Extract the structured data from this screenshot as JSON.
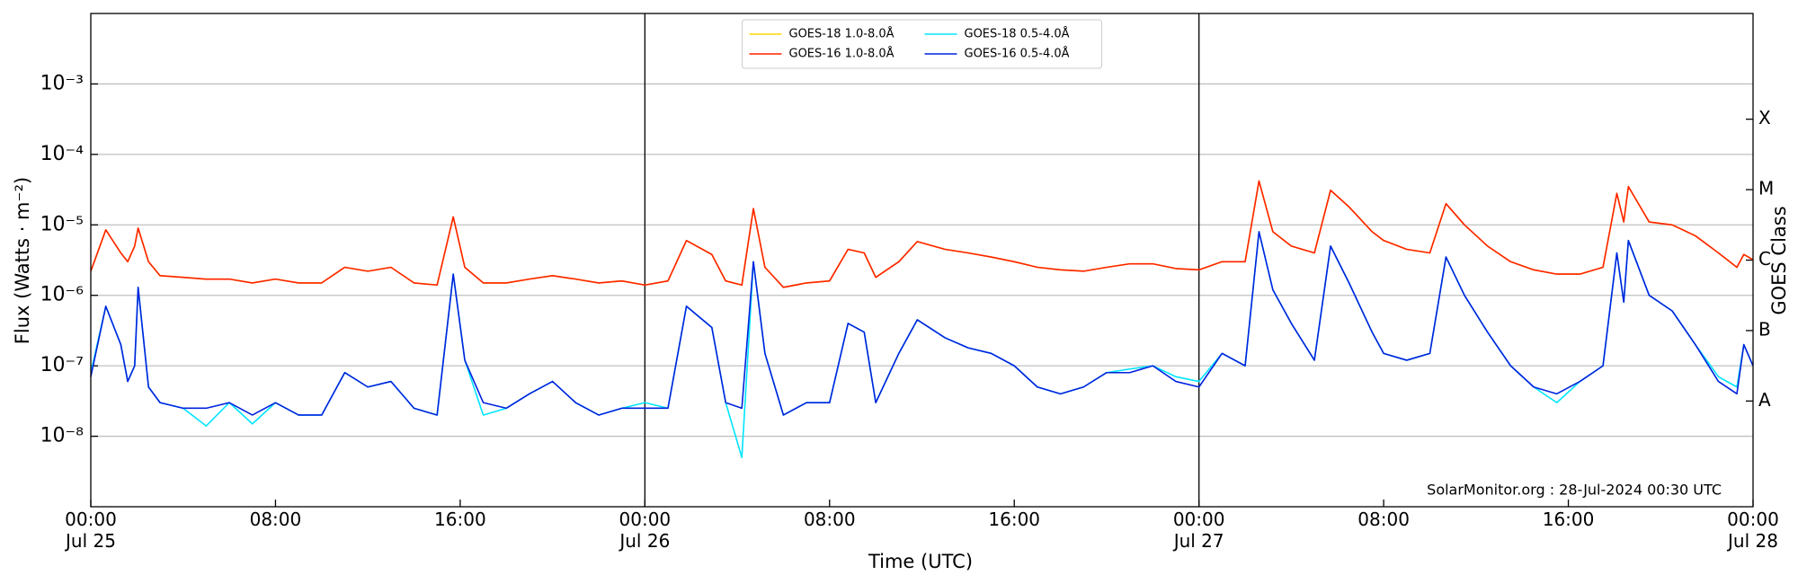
{
  "chart_data": {
    "type": "line",
    "xlabel": "Time (UTC)",
    "ylabel": "Flux (Watts · m⁻²)",
    "y2label": "GOES Class",
    "annotation": "SolarMonitor.org : 28-Jul-2024 00:30 UTC",
    "ylog": true,
    "grid": "y",
    "legend": "upper center",
    "ylim": [
      1e-09,
      0.01
    ],
    "yticks": [
      {
        "value": 1e-08,
        "label": "10⁻⁸"
      },
      {
        "value": 1e-07,
        "label": "10⁻⁷"
      },
      {
        "value": 1e-06,
        "label": "10⁻⁶"
      },
      {
        "value": 1e-05,
        "label": "10⁻⁵"
      },
      {
        "value": 0.0001,
        "label": "10⁻⁴"
      },
      {
        "value": 0.001,
        "label": "10⁻³"
      }
    ],
    "y2lim": [
      1e-09,
      0.01
    ],
    "y2ticks": [
      {
        "value": 3.1623e-08,
        "label": "A"
      },
      {
        "value": 3.1623e-07,
        "label": "B"
      },
      {
        "value": 3.1623e-06,
        "label": "C"
      },
      {
        "value": 3.1623e-05,
        "label": "M"
      },
      {
        "value": 0.00031623,
        "label": "X"
      }
    ],
    "xlim": [
      0,
      72
    ],
    "xticks": [
      {
        "value": 0,
        "label": "00:00\nJul 25"
      },
      {
        "value": 8,
        "label": "08:00"
      },
      {
        "value": 16,
        "label": "16:00"
      },
      {
        "value": 24,
        "label": "00:00\nJul 26"
      },
      {
        "value": 32,
        "label": "08:00"
      },
      {
        "value": 40,
        "label": "16:00"
      },
      {
        "value": 48,
        "label": "00:00\nJul 27"
      },
      {
        "value": 56,
        "label": "08:00"
      },
      {
        "value": 64,
        "label": "16:00"
      },
      {
        "value": 72,
        "label": "00:00\nJul 28"
      }
    ],
    "vlines": [
      24,
      48
    ],
    "x": [
      0,
      0.65,
      1.3,
      1.6,
      1.9,
      2.05,
      2.5,
      3,
      4,
      5,
      6,
      7,
      8,
      9,
      10,
      11,
      12,
      13,
      14,
      15,
      15.7,
      16.2,
      17,
      18,
      19,
      20,
      21,
      22,
      23,
      24,
      25,
      25.8,
      26.9,
      27.5,
      28.2,
      28.7,
      29.2,
      30,
      31,
      32,
      32.8,
      33.5,
      34,
      35,
      35.8,
      37,
      38,
      39,
      40,
      41,
      42,
      43,
      44,
      45,
      46,
      47,
      48,
      49,
      50,
      50.6,
      51.2,
      52,
      53,
      53.7,
      54.5,
      55.5,
      56,
      57,
      58,
      58.7,
      59.5,
      60.5,
      61.5,
      62.5,
      63.5,
      64.5,
      65.5,
      66.1,
      66.4,
      66.6,
      67.5,
      68.5,
      69.5,
      70.5,
      71.3,
      71.6,
      72
    ],
    "series": [
      {
        "name": "GOES-18 1.0-8.0Å",
        "color": "#ffd700",
        "values": [
          2.2e-06,
          8.5e-06,
          4e-06,
          3e-06,
          5e-06,
          9e-06,
          3e-06,
          1.9e-06,
          1.8e-06,
          1.7e-06,
          1.7e-06,
          1.5e-06,
          1.7e-06,
          1.5e-06,
          1.5e-06,
          2.5e-06,
          2.2e-06,
          2.5e-06,
          1.5e-06,
          1.4e-06,
          1.3e-05,
          2.5e-06,
          1.5e-06,
          1.5e-06,
          1.7e-06,
          1.9e-06,
          1.7e-06,
          1.5e-06,
          1.6e-06,
          1.4e-06,
          1.6e-06,
          6e-06,
          3.8e-06,
          1.6e-06,
          1.4e-06,
          1.7e-05,
          2.5e-06,
          1.3e-06,
          1.5e-06,
          1.6e-06,
          4.5e-06,
          4e-06,
          1.8e-06,
          3e-06,
          5.8e-06,
          4.5e-06,
          4e-06,
          3.5e-06,
          3e-06,
          2.5e-06,
          2.3e-06,
          2.2e-06,
          2.5e-06,
          2.8e-06,
          2.8e-06,
          2.4e-06,
          2.3e-06,
          3e-06,
          3e-06,
          4.2e-05,
          8e-06,
          5e-06,
          4e-06,
          3.1e-05,
          1.8e-05,
          8e-06,
          6e-06,
          4.5e-06,
          4e-06,
          2e-05,
          1e-05,
          5e-06,
          3e-06,
          2.3e-06,
          2e-06,
          2e-06,
          2.5e-06,
          2.8e-05,
          1.1e-05,
          3.5e-05,
          1.1e-05,
          1e-05,
          7e-06,
          4e-06,
          2.5e-06,
          3.8e-06,
          3.2e-06
        ]
      },
      {
        "name": "GOES-16 1.0-8.0Å",
        "color": "#ff2200",
        "values": [
          2.2e-06,
          8.5e-06,
          4e-06,
          3e-06,
          5e-06,
          9e-06,
          3e-06,
          1.9e-06,
          1.8e-06,
          1.7e-06,
          1.7e-06,
          1.5e-06,
          1.7e-06,
          1.5e-06,
          1.5e-06,
          2.5e-06,
          2.2e-06,
          2.5e-06,
          1.5e-06,
          1.4e-06,
          1.3e-05,
          2.5e-06,
          1.5e-06,
          1.5e-06,
          1.7e-06,
          1.9e-06,
          1.7e-06,
          1.5e-06,
          1.6e-06,
          1.4e-06,
          1.6e-06,
          6e-06,
          3.8e-06,
          1.6e-06,
          1.4e-06,
          1.7e-05,
          2.5e-06,
          1.3e-06,
          1.5e-06,
          1.6e-06,
          4.5e-06,
          4e-06,
          1.8e-06,
          3e-06,
          5.8e-06,
          4.5e-06,
          4e-06,
          3.5e-06,
          3e-06,
          2.5e-06,
          2.3e-06,
          2.2e-06,
          2.5e-06,
          2.8e-06,
          2.8e-06,
          2.4e-06,
          2.3e-06,
          3e-06,
          3e-06,
          4.2e-05,
          8e-06,
          5e-06,
          4e-06,
          3.1e-05,
          1.8e-05,
          8e-06,
          6e-06,
          4.5e-06,
          4e-06,
          2e-05,
          1e-05,
          5e-06,
          3e-06,
          2.3e-06,
          2e-06,
          2e-06,
          2.5e-06,
          2.8e-05,
          1.1e-05,
          3.5e-05,
          1.1e-05,
          1e-05,
          7e-06,
          4e-06,
          2.5e-06,
          3.8e-06,
          3.2e-06
        ]
      },
      {
        "name": "GOES-18 0.5-4.0Å",
        "color": "#00e5ff",
        "values": [
          8e-08,
          7e-07,
          2e-07,
          6e-08,
          1e-07,
          1.3e-06,
          5e-08,
          3e-08,
          2.5e-08,
          1.4e-08,
          3e-08,
          1.5e-08,
          3e-08,
          2e-08,
          2e-08,
          8e-08,
          5e-08,
          6e-08,
          2.5e-08,
          2e-08,
          2e-06,
          1.2e-07,
          2e-08,
          2.5e-08,
          4e-08,
          6e-08,
          3e-08,
          2e-08,
          2.5e-08,
          3e-08,
          2.5e-08,
          7e-07,
          3.5e-07,
          3e-08,
          5e-09,
          3e-06,
          1.5e-07,
          2e-08,
          3e-08,
          3e-08,
          4e-07,
          3e-07,
          3e-08,
          1.5e-07,
          4.5e-07,
          2.5e-07,
          1.8e-07,
          1.5e-07,
          1e-07,
          5e-08,
          4e-08,
          5e-08,
          8e-08,
          9e-08,
          1e-07,
          7e-08,
          6e-08,
          1.5e-07,
          1e-07,
          8e-06,
          1.2e-06,
          4e-07,
          1.2e-07,
          5e-06,
          1.5e-06,
          3e-07,
          1.5e-07,
          1.2e-07,
          1.5e-07,
          3.5e-06,
          1e-06,
          3e-07,
          1e-07,
          5e-08,
          3e-08,
          6e-08,
          1e-07,
          4e-06,
          8e-07,
          6e-06,
          1e-06,
          6e-07,
          2e-07,
          7e-08,
          5e-08,
          2e-07,
          1e-07
        ]
      },
      {
        "name": "GOES-16 0.5-4.0Å",
        "color": "#0022dd",
        "values": [
          7e-08,
          7e-07,
          2e-07,
          6e-08,
          1e-07,
          1.3e-06,
          5e-08,
          3e-08,
          2.5e-08,
          2.5e-08,
          3e-08,
          2e-08,
          3e-08,
          2e-08,
          2e-08,
          8e-08,
          5e-08,
          6e-08,
          2.5e-08,
          2e-08,
          2e-06,
          1.2e-07,
          3e-08,
          2.5e-08,
          4e-08,
          6e-08,
          3e-08,
          2e-08,
          2.5e-08,
          2.5e-08,
          2.5e-08,
          7e-07,
          3.5e-07,
          3e-08,
          2.5e-08,
          3e-06,
          1.5e-07,
          2e-08,
          3e-08,
          3e-08,
          4e-07,
          3e-07,
          3e-08,
          1.5e-07,
          4.5e-07,
          2.5e-07,
          1.8e-07,
          1.5e-07,
          1e-07,
          5e-08,
          4e-08,
          5e-08,
          8e-08,
          8e-08,
          1e-07,
          6e-08,
          5e-08,
          1.5e-07,
          1e-07,
          8e-06,
          1.2e-06,
          4e-07,
          1.2e-07,
          5e-06,
          1.5e-06,
          3e-07,
          1.5e-07,
          1.2e-07,
          1.5e-07,
          3.5e-06,
          1e-06,
          3e-07,
          1e-07,
          5e-08,
          4e-08,
          6e-08,
          1e-07,
          4e-06,
          8e-07,
          6e-06,
          1e-06,
          6e-07,
          2e-07,
          6e-08,
          4e-08,
          2e-07,
          1e-07
        ]
      }
    ]
  }
}
